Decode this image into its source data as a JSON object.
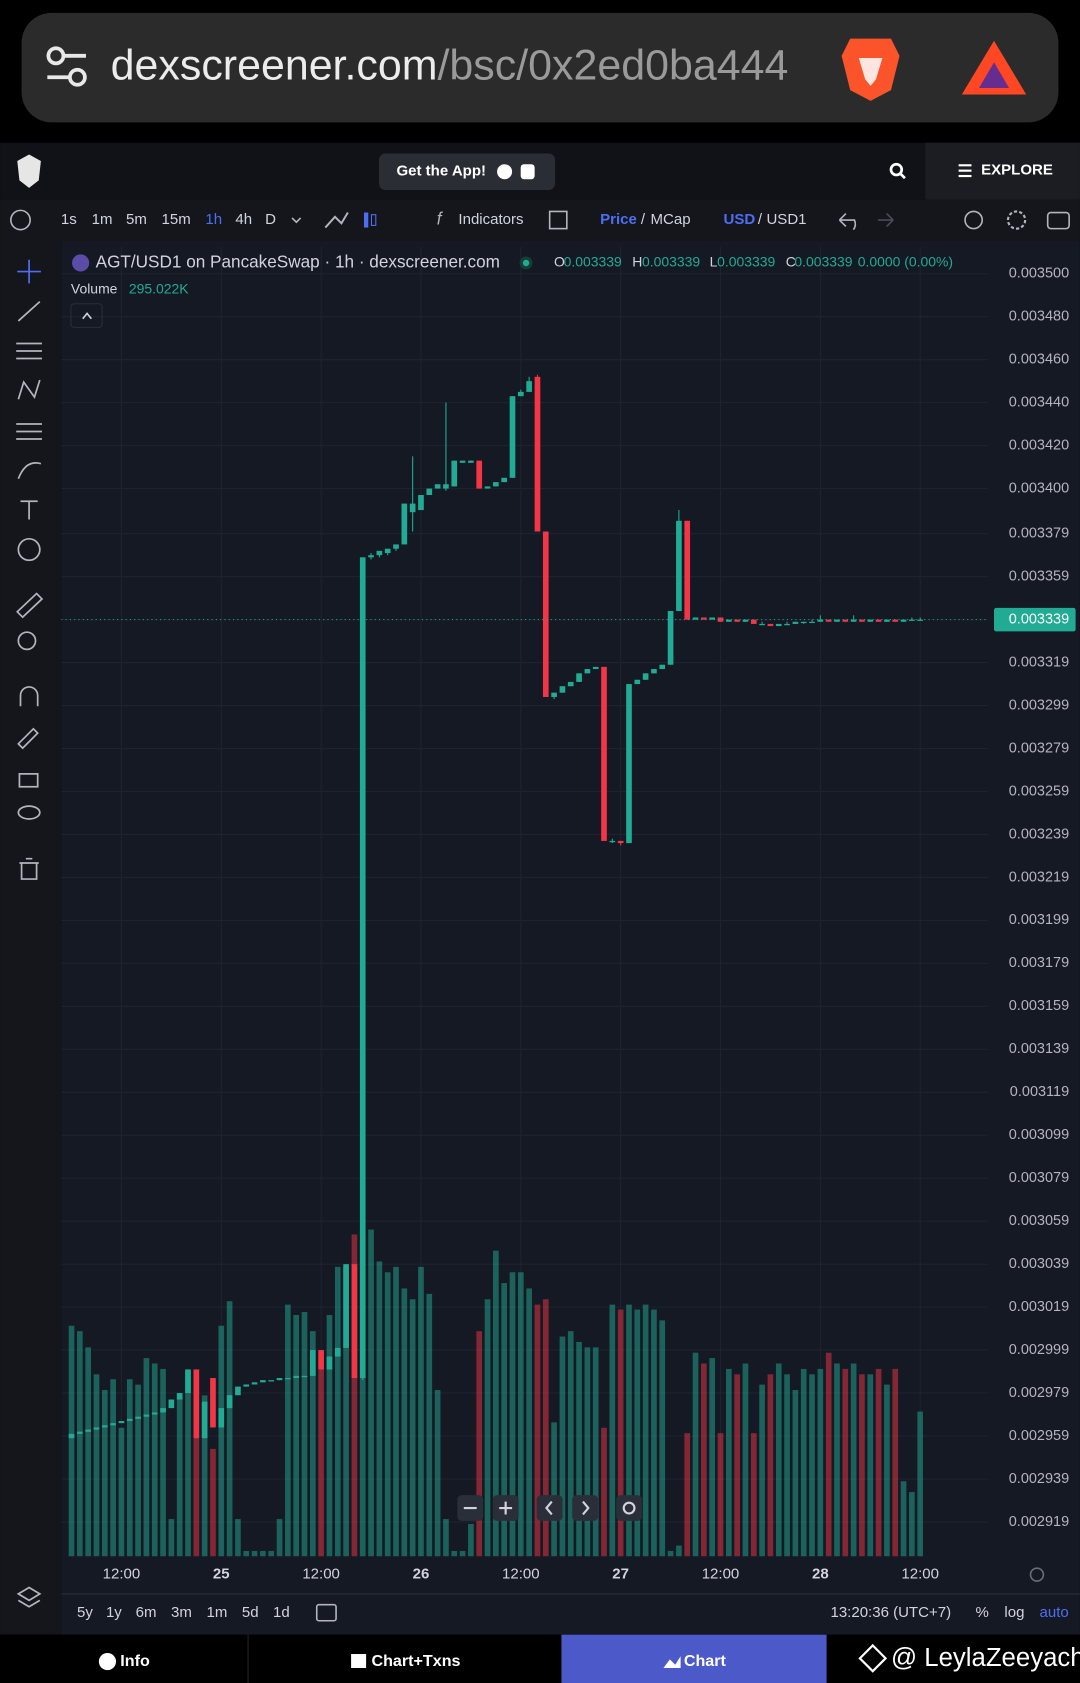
{
  "browser": {
    "url_host": "dexscreener.com",
    "url_path": "/bsc/0x2ed0ba444"
  },
  "header": {
    "get_app": "Get the App!",
    "explore": "EXPLORE"
  },
  "toolbar": {
    "intervals": [
      "1s",
      "1m",
      "5m",
      "15m",
      "1h",
      "4h",
      "D"
    ],
    "active_interval": 4,
    "indicators": "Indicators",
    "separator": "/",
    "price": "Price",
    "mcap": "MCap",
    "usd": "USD",
    "usd1": "USD1"
  },
  "footer": {
    "ranges": [
      "5y",
      "1y",
      "6m",
      "3m",
      "1m",
      "5d",
      "1d"
    ],
    "time": "13:20:36 (UTC+7)",
    "percent": "%",
    "log": "log",
    "auto": "auto"
  },
  "tabs": [
    "Info",
    "Chart+Txns",
    "Chart"
  ],
  "watermark": "@ LeylaZeeyach",
  "chart_data": {
    "type": "candlestick",
    "title": "AGT/USD1 on PancakeSwap · 1h · dexscreener.com",
    "ohlc_legend": {
      "labels": [
        "O",
        "H",
        "L",
        "C"
      ],
      "values": [
        "0.003339",
        "0.003339",
        "0.003339",
        "0.003339"
      ],
      "change": "0.0000 (0.00%)"
    },
    "volume_label": "Volume",
    "volume_value_label": "295.022K",
    "last_price_label": "0.003339",
    "last_price": 0.003339,
    "up_color": "#22ab94",
    "down_color": "#f23645",
    "grid": true,
    "xlim": [
      4.77,
      116.1
    ],
    "xticks": [
      {
        "value": 12,
        "label": "12:00"
      },
      {
        "value": 24,
        "label": "25"
      },
      {
        "value": 36,
        "label": "12:00"
      },
      {
        "value": 48,
        "label": "26"
      },
      {
        "value": 60,
        "label": "12:00"
      },
      {
        "value": 72,
        "label": "27"
      },
      {
        "value": 84,
        "label": "12:00"
      },
      {
        "value": 96,
        "label": "28"
      },
      {
        "value": 108,
        "label": "12:00"
      }
    ],
    "ylim": [
      0.002903,
      0.0035125
    ],
    "yticks": [
      {
        "value": 0.0035,
        "label": "0.003500"
      },
      {
        "value": 0.00348,
        "label": "0.003480"
      },
      {
        "value": 0.00346,
        "label": "0.003460"
      },
      {
        "value": 0.00344,
        "label": "0.003440"
      },
      {
        "value": 0.00342,
        "label": "0.003420"
      },
      {
        "value": 0.0034,
        "label": "0.003400"
      },
      {
        "value": 0.003379,
        "label": "0.003379"
      },
      {
        "value": 0.003359,
        "label": "0.003359"
      },
      {
        "value": 0.003339,
        "label": "0.003339"
      },
      {
        "value": 0.003319,
        "label": "0.003319"
      },
      {
        "value": 0.003299,
        "label": "0.003299"
      },
      {
        "value": 0.003279,
        "label": "0.003279"
      },
      {
        "value": 0.003259,
        "label": "0.003259"
      },
      {
        "value": 0.003239,
        "label": "0.003239"
      },
      {
        "value": 0.003219,
        "label": "0.003219"
      },
      {
        "value": 0.003199,
        "label": "0.003199"
      },
      {
        "value": 0.003179,
        "label": "0.003179"
      },
      {
        "value": 0.003159,
        "label": "0.003159"
      },
      {
        "value": 0.003139,
        "label": "0.003139"
      },
      {
        "value": 0.003119,
        "label": "0.003119"
      },
      {
        "value": 0.003099,
        "label": "0.003099"
      },
      {
        "value": 0.003079,
        "label": "0.003079"
      },
      {
        "value": 0.003059,
        "label": "0.003059"
      },
      {
        "value": 0.003039,
        "label": "0.003039"
      },
      {
        "value": 0.003019,
        "label": "0.003019"
      },
      {
        "value": 0.002999,
        "label": "0.002999"
      },
      {
        "value": 0.002979,
        "label": "0.002979"
      },
      {
        "value": 0.002959,
        "label": "0.002959"
      },
      {
        "value": 0.002939,
        "label": "0.002939"
      },
      {
        "value": 0.002919,
        "label": "0.002919"
      }
    ],
    "volume_lim": [
      0,
      700
    ],
    "x": [
      6,
      7,
      8,
      9,
      10,
      11,
      12,
      13,
      14,
      15,
      16,
      17,
      18,
      19,
      20,
      21,
      22,
      23,
      24,
      25,
      26,
      27,
      28,
      29,
      30,
      31,
      32,
      33,
      34,
      35,
      36,
      37,
      38,
      39,
      40,
      41,
      42,
      43,
      44,
      45,
      46,
      47,
      48,
      49,
      50,
      51,
      52,
      53,
      54,
      55,
      56,
      57,
      58,
      59,
      60,
      61,
      62,
      63,
      64,
      65,
      66,
      67,
      68,
      69,
      70,
      71,
      72,
      73,
      74,
      75,
      76,
      77,
      78,
      79,
      80,
      81,
      82,
      83,
      84,
      85,
      86,
      87,
      88,
      89,
      90,
      91,
      92,
      93,
      94,
      95,
      96,
      97,
      98,
      99,
      100,
      101,
      102,
      103,
      104,
      105,
      106,
      107,
      108
    ],
    "ohlc": [
      [
        0.002958,
        0.00296,
        0.002958,
        0.00296
      ],
      [
        0.00296,
        0.002961,
        0.00296,
        0.002961
      ],
      [
        0.002961,
        0.002962,
        0.002961,
        0.002962
      ],
      [
        0.002962,
        0.002963,
        0.002962,
        0.002963
      ],
      [
        0.002963,
        0.002964,
        0.002963,
        0.002964
      ],
      [
        0.002964,
        0.002965,
        0.002964,
        0.002965
      ],
      [
        0.002965,
        0.002966,
        0.002965,
        0.002966
      ],
      [
        0.002966,
        0.002967,
        0.002966,
        0.002967
      ],
      [
        0.002967,
        0.002968,
        0.002967,
        0.002968
      ],
      [
        0.002968,
        0.002969,
        0.002968,
        0.002969
      ],
      [
        0.002969,
        0.00297,
        0.002969,
        0.00297
      ],
      [
        0.00297,
        0.002972,
        0.00297,
        0.002972
      ],
      [
        0.002972,
        0.002976,
        0.002972,
        0.002976
      ],
      [
        0.002976,
        0.002979,
        0.002976,
        0.002979
      ],
      [
        0.002979,
        0.00299,
        0.002979,
        0.00299
      ],
      [
        0.00299,
        0.00299,
        0.002958,
        0.002958
      ],
      [
        0.002958,
        0.002975,
        0.002958,
        0.002975
      ],
      [
        0.002986,
        0.002986,
        0.002963,
        0.002963
      ],
      [
        0.002963,
        0.002972,
        0.002963,
        0.002972
      ],
      [
        0.002972,
        0.002978,
        0.002972,
        0.002978
      ],
      [
        0.002978,
        0.002982,
        0.002978,
        0.002982
      ],
      [
        0.002982,
        0.002983,
        0.002982,
        0.002983
      ],
      [
        0.002983,
        0.002984,
        0.002983,
        0.002984
      ],
      [
        0.002984,
        0.002985,
        0.002984,
        0.002985
      ],
      [
        0.002985,
        0.002985,
        0.002985,
        0.002985
      ],
      [
        0.002985,
        0.002986,
        0.002985,
        0.002986
      ],
      [
        0.002986,
        0.002986,
        0.002986,
        0.002986
      ],
      [
        0.002986,
        0.002987,
        0.002986,
        0.002987
      ],
      [
        0.002987,
        0.002987,
        0.002987,
        0.002987
      ],
      [
        0.002987,
        0.002999,
        0.002987,
        0.002999
      ],
      [
        0.002999,
        0.002999,
        0.00299,
        0.00299
      ],
      [
        0.00299,
        0.002996,
        0.00299,
        0.002996
      ],
      [
        0.002996,
        0.003,
        0.002996,
        0.003
      ],
      [
        0.003,
        0.003039,
        0.003,
        0.003039
      ],
      [
        0.003039,
        0.003039,
        0.002986,
        0.002986
      ],
      [
        0.002986,
        0.003368,
        0.002985,
        0.003368
      ],
      [
        0.003368,
        0.00337,
        0.003367,
        0.003369
      ],
      [
        0.003369,
        0.003371,
        0.003368,
        0.003371
      ],
      [
        0.00337,
        0.003372,
        0.003369,
        0.003372
      ],
      [
        0.003372,
        0.003374,
        0.003371,
        0.003374
      ],
      [
        0.003374,
        0.003393,
        0.003374,
        0.003393
      ],
      [
        0.003389,
        0.003415,
        0.00338,
        0.003393
      ],
      [
        0.00339,
        0.003397,
        0.00339,
        0.003397
      ],
      [
        0.003397,
        0.0034,
        0.003397,
        0.0034
      ],
      [
        0.0034,
        0.003402,
        0.0034,
        0.003402
      ],
      [
        0.0034,
        0.00344,
        0.003399,
        0.003402
      ],
      [
        0.003401,
        0.003413,
        0.003401,
        0.003413
      ],
      [
        0.003412,
        0.003413,
        0.003412,
        0.003413
      ],
      [
        0.003412,
        0.003413,
        0.003412,
        0.003413
      ],
      [
        0.003413,
        0.003413,
        0.0034,
        0.0034
      ],
      [
        0.0034,
        0.003401,
        0.0034,
        0.003401
      ],
      [
        0.003401,
        0.003403,
        0.003401,
        0.003403
      ],
      [
        0.003403,
        0.003405,
        0.003403,
        0.003405
      ],
      [
        0.003405,
        0.003443,
        0.003405,
        0.003443
      ],
      [
        0.003443,
        0.003446,
        0.003443,
        0.003445
      ],
      [
        0.003445,
        0.003452,
        0.003445,
        0.00345
      ],
      [
        0.003452,
        0.003453,
        0.00338,
        0.00338
      ],
      [
        0.00338,
        0.00338,
        0.003303,
        0.003303
      ],
      [
        0.003303,
        0.003305,
        0.003302,
        0.003305
      ],
      [
        0.003305,
        0.003308,
        0.003305,
        0.003308
      ],
      [
        0.003308,
        0.00331,
        0.003308,
        0.00331
      ],
      [
        0.00331,
        0.003314,
        0.00331,
        0.003314
      ],
      [
        0.003314,
        0.003316,
        0.003314,
        0.003316
      ],
      [
        0.003316,
        0.003317,
        0.003316,
        0.003317
      ],
      [
        0.003317,
        0.003317,
        0.003236,
        0.003236
      ],
      [
        0.003236,
        0.003237,
        0.003235,
        0.003236
      ],
      [
        0.003236,
        0.003236,
        0.003234,
        0.003235
      ],
      [
        0.003235,
        0.003309,
        0.003235,
        0.003309
      ],
      [
        0.003309,
        0.003311,
        0.003309,
        0.003311
      ],
      [
        0.003311,
        0.003314,
        0.003311,
        0.003314
      ],
      [
        0.003314,
        0.003316,
        0.003314,
        0.003316
      ],
      [
        0.003316,
        0.003318,
        0.003316,
        0.003318
      ],
      [
        0.003318,
        0.003343,
        0.003318,
        0.003343
      ],
      [
        0.003343,
        0.00339,
        0.003343,
        0.003385
      ],
      [
        0.003385,
        0.003385,
        0.003339,
        0.003339
      ],
      [
        0.003339,
        0.00334,
        0.003339,
        0.00334
      ],
      [
        0.00334,
        0.00334,
        0.003339,
        0.003339
      ],
      [
        0.003339,
        0.00334,
        0.003339,
        0.00334
      ],
      [
        0.00334,
        0.00334,
        0.003338,
        0.003338
      ],
      [
        0.003338,
        0.003339,
        0.003338,
        0.003339
      ],
      [
        0.003339,
        0.003339,
        0.003338,
        0.003338
      ],
      [
        0.003338,
        0.003339,
        0.003338,
        0.003339
      ],
      [
        0.003339,
        0.003339,
        0.003337,
        0.003337
      ],
      [
        0.003337,
        0.003338,
        0.003337,
        0.003337
      ],
      [
        0.003337,
        0.003337,
        0.003336,
        0.003336
      ],
      [
        0.003336,
        0.003337,
        0.003336,
        0.003337
      ],
      [
        0.003337,
        0.003338,
        0.003337,
        0.003337
      ],
      [
        0.003337,
        0.003338,
        0.003337,
        0.003338
      ],
      [
        0.003338,
        0.003338,
        0.003337,
        0.003338
      ],
      [
        0.003338,
        0.003339,
        0.003338,
        0.003338
      ],
      [
        0.003338,
        0.003341,
        0.003338,
        0.003339
      ],
      [
        0.003339,
        0.003339,
        0.003338,
        0.003338
      ],
      [
        0.003338,
        0.003339,
        0.003338,
        0.003339
      ],
      [
        0.003339,
        0.003339,
        0.003338,
        0.003338
      ],
      [
        0.003338,
        0.003341,
        0.003338,
        0.003339
      ],
      [
        0.003339,
        0.003339,
        0.003338,
        0.003338
      ],
      [
        0.003338,
        0.003339,
        0.003338,
        0.003339
      ],
      [
        0.003339,
        0.003339,
        0.003338,
        0.003338
      ],
      [
        0.003338,
        0.003339,
        0.003338,
        0.003339
      ],
      [
        0.003339,
        0.003339,
        0.003338,
        0.003338
      ],
      [
        0.003338,
        0.003339,
        0.003338,
        0.003339
      ],
      [
        0.003339,
        0.00334,
        0.003339,
        0.003339
      ],
      [
        0.003339,
        0.00334,
        0.003339,
        0.003339
      ]
    ],
    "volume": [
      470,
      459,
      426,
      371,
      339,
      361,
      262,
      361,
      350,
      404,
      393,
      382,
      76,
      328,
      376,
      284,
      328,
      219,
      470,
      520,
      76,
      11,
      11,
      11,
      11,
      76,
      513,
      492,
      498,
      459,
      415,
      492,
      590,
      590,
      656,
      645,
      666,
      601,
      579,
      590,
      546,
      524,
      590,
      535,
      339,
      76,
      11,
      11,
      66,
      459,
      524,
      623,
      557,
      579,
      579,
      546,
      513,
      524,
      273,
      448,
      459,
      437,
      426,
      426,
      262,
      513,
      503,
      513,
      503,
      513,
      503,
      481,
      11,
      22,
      251,
      415,
      393,
      404,
      251,
      382,
      371,
      393,
      251,
      350,
      371,
      393,
      371,
      339,
      382,
      371,
      382,
      415,
      393,
      382,
      393,
      371,
      371,
      382,
      350,
      382,
      153,
      131,
      295.022
    ]
  }
}
